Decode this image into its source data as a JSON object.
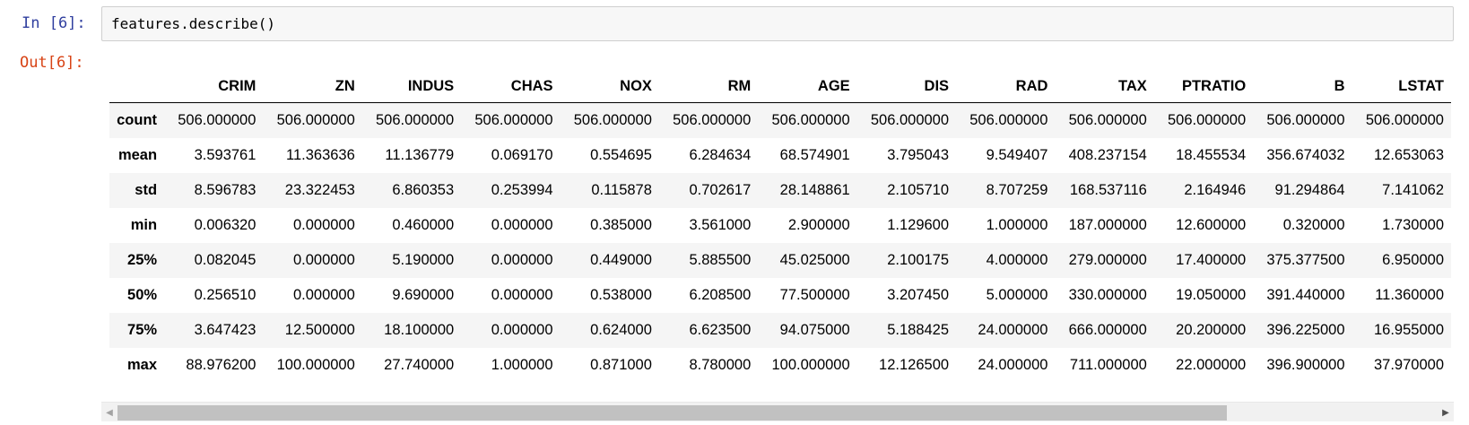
{
  "cell": {
    "in_prompt": "In [6]:",
    "out_prompt": "Out[6]:",
    "code": "features.describe()"
  },
  "table": {
    "columns": [
      "CRIM",
      "ZN",
      "INDUS",
      "CHAS",
      "NOX",
      "RM",
      "AGE",
      "DIS",
      "RAD",
      "TAX",
      "PTRATIO",
      "B",
      "LSTAT"
    ],
    "rows": [
      {
        "label": "count",
        "values": [
          "506.000000",
          "506.000000",
          "506.000000",
          "506.000000",
          "506.000000",
          "506.000000",
          "506.000000",
          "506.000000",
          "506.000000",
          "506.000000",
          "506.000000",
          "506.000000",
          "506.000000"
        ]
      },
      {
        "label": "mean",
        "values": [
          "3.593761",
          "11.363636",
          "11.136779",
          "0.069170",
          "0.554695",
          "6.284634",
          "68.574901",
          "3.795043",
          "9.549407",
          "408.237154",
          "18.455534",
          "356.674032",
          "12.653063"
        ]
      },
      {
        "label": "std",
        "values": [
          "8.596783",
          "23.322453",
          "6.860353",
          "0.253994",
          "0.115878",
          "0.702617",
          "28.148861",
          "2.105710",
          "8.707259",
          "168.537116",
          "2.164946",
          "91.294864",
          "7.141062"
        ]
      },
      {
        "label": "min",
        "values": [
          "0.006320",
          "0.000000",
          "0.460000",
          "0.000000",
          "0.385000",
          "3.561000",
          "2.900000",
          "1.129600",
          "1.000000",
          "187.000000",
          "12.600000",
          "0.320000",
          "1.730000"
        ]
      },
      {
        "label": "25%",
        "values": [
          "0.082045",
          "0.000000",
          "5.190000",
          "0.000000",
          "0.449000",
          "5.885500",
          "45.025000",
          "2.100175",
          "4.000000",
          "279.000000",
          "17.400000",
          "375.377500",
          "6.950000"
        ]
      },
      {
        "label": "50%",
        "values": [
          "0.256510",
          "0.000000",
          "9.690000",
          "0.000000",
          "0.538000",
          "6.208500",
          "77.500000",
          "3.207450",
          "5.000000",
          "330.000000",
          "19.050000",
          "391.440000",
          "11.360000"
        ]
      },
      {
        "label": "75%",
        "values": [
          "3.647423",
          "12.500000",
          "18.100000",
          "0.000000",
          "0.624000",
          "6.623500",
          "94.075000",
          "5.188425",
          "24.000000",
          "666.000000",
          "20.200000",
          "396.225000",
          "16.955000"
        ]
      },
      {
        "label": "max",
        "values": [
          "88.976200",
          "100.000000",
          "27.740000",
          "1.000000",
          "0.871000",
          "8.780000",
          "100.000000",
          "12.126500",
          "24.000000",
          "711.000000",
          "22.000000",
          "396.900000",
          "37.970000"
        ]
      }
    ]
  },
  "scrollbar": {
    "left_arrow": "◀",
    "right_arrow": "▶",
    "position_fraction": 0.0,
    "visible_fraction": 0.84
  },
  "colors": {
    "in_prompt": "#303f9f",
    "out_prompt": "#d84315",
    "stripe": "#f5f5f5"
  }
}
